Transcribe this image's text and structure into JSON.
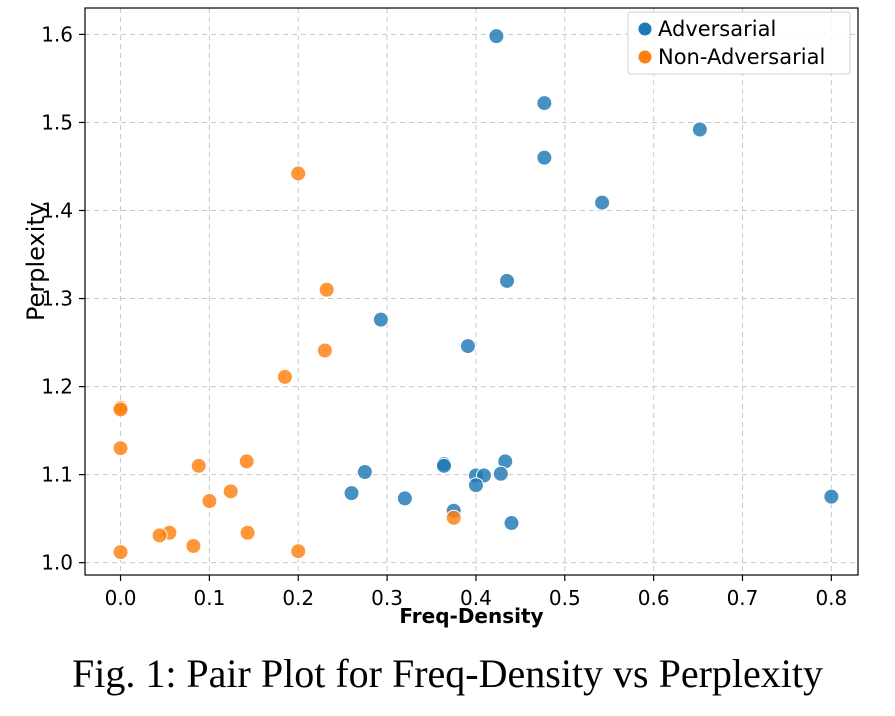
{
  "caption": "Fig. 1: Pair Plot for Freq-Density vs Perplexity",
  "chart_data": {
    "type": "scatter",
    "title": "",
    "xlabel": "Freq-Density",
    "ylabel": "Perplexity",
    "xlim": [
      -0.04,
      0.83
    ],
    "ylim": [
      0.986,
      1.63
    ],
    "xticks": [
      0.0,
      0.1,
      0.2,
      0.3,
      0.4,
      0.5,
      0.6,
      0.7,
      0.8
    ],
    "xtick_labels": [
      "0.0",
      "0.1",
      "0.2",
      "0.3",
      "0.4",
      "0.5",
      "0.6",
      "0.7",
      "0.8"
    ],
    "yticks": [
      1.0,
      1.1,
      1.2,
      1.3,
      1.4,
      1.5,
      1.6
    ],
    "ytick_labels": [
      "1.0",
      "1.1",
      "1.2",
      "1.3",
      "1.4",
      "1.5",
      "1.6"
    ],
    "grid": true,
    "legend_position": "top-right",
    "series": [
      {
        "name": "Adversarial",
        "color": "#1f77b4",
        "points": [
          [
            0.423,
            1.598
          ],
          [
            0.477,
            1.522
          ],
          [
            0.652,
            1.492
          ],
          [
            0.477,
            1.46
          ],
          [
            0.542,
            1.409
          ],
          [
            0.435,
            1.32
          ],
          [
            0.293,
            1.276
          ],
          [
            0.391,
            1.246
          ],
          [
            0.364,
            1.112
          ],
          [
            0.364,
            1.11
          ],
          [
            0.433,
            1.115
          ],
          [
            0.275,
            1.103
          ],
          [
            0.4,
            1.099
          ],
          [
            0.409,
            1.099
          ],
          [
            0.428,
            1.101
          ],
          [
            0.4,
            1.088
          ],
          [
            0.26,
            1.079
          ],
          [
            0.32,
            1.073
          ],
          [
            0.375,
            1.059
          ],
          [
            0.44,
            1.045
          ],
          [
            0.8,
            1.075
          ]
        ]
      },
      {
        "name": "Non-Adversarial",
        "color": "#ff7f0e",
        "points": [
          [
            0.2,
            1.442
          ],
          [
            0.232,
            1.31
          ],
          [
            0.23,
            1.241
          ],
          [
            0.185,
            1.211
          ],
          [
            0.0,
            1.176
          ],
          [
            0.0,
            1.174
          ],
          [
            0.0,
            1.13
          ],
          [
            0.142,
            1.115
          ],
          [
            0.088,
            1.11
          ],
          [
            0.124,
            1.081
          ],
          [
            0.1,
            1.07
          ],
          [
            0.375,
            1.051
          ],
          [
            0.143,
            1.034
          ],
          [
            0.055,
            1.034
          ],
          [
            0.044,
            1.031
          ],
          [
            0.082,
            1.019
          ],
          [
            0.0,
            1.012
          ],
          [
            0.2,
            1.013
          ]
        ]
      }
    ]
  }
}
